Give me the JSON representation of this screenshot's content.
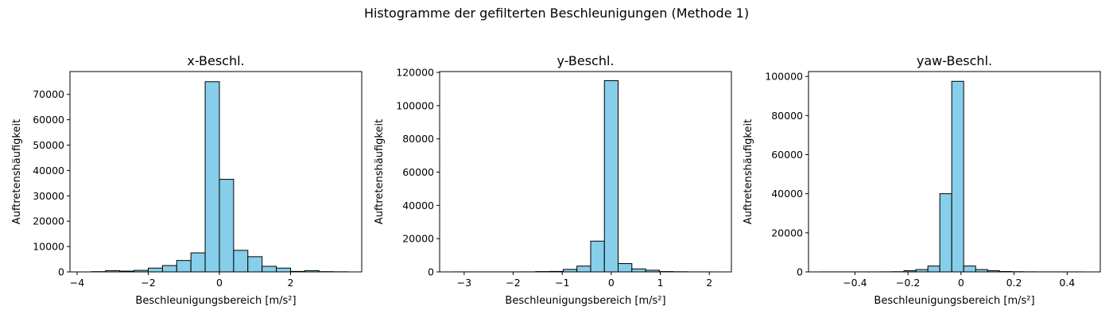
{
  "figure_title": "Histogramme der gefilterten Beschleunigungen (Methode 1)",
  "colors": {
    "bar_fill": "#87CEEB",
    "bar_edge": "#000000"
  },
  "chart_data": [
    {
      "type": "bar",
      "title": "x-Beschl.",
      "xlabel": "Beschleunigungsbereich [m/s²]",
      "ylabel": "Auftretenshäufigkeit",
      "xlim": [
        -4.2,
        4.0
      ],
      "ylim": [
        0,
        79000
      ],
      "xticks": [
        -4,
        -2,
        0,
        2
      ],
      "yticks": [
        0,
        10000,
        20000,
        30000,
        40000,
        50000,
        60000,
        70000
      ],
      "grid": false,
      "bin_edges": [
        -3.6,
        -3.2,
        -2.8,
        -2.4,
        -2.0,
        -1.6,
        -1.2,
        -0.8,
        -0.4,
        0.0,
        0.4,
        0.8,
        1.2,
        1.6,
        2.0,
        2.4,
        2.8,
        3.2,
        3.6
      ],
      "values": [
        100,
        500,
        300,
        600,
        1500,
        2500,
        4500,
        7500,
        75000,
        36500,
        8500,
        6000,
        2200,
        1500,
        200,
        500,
        100,
        50
      ]
    },
    {
      "type": "bar",
      "title": "y-Beschl.",
      "xlabel": "Beschleunigungsbereich [m/s²]",
      "ylabel": "Auftretenshäufigkeit",
      "xlim": [
        -3.5,
        2.45
      ],
      "ylim": [
        0,
        120500
      ],
      "xticks": [
        -3,
        -2,
        -1,
        0,
        1,
        2
      ],
      "yticks": [
        0,
        20000,
        40000,
        60000,
        80000,
        100000,
        120000
      ],
      "grid": false,
      "bin_edges": [
        -3.22,
        -2.94,
        -2.66,
        -2.38,
        -2.1,
        -1.82,
        -1.54,
        -1.26,
        -0.98,
        -0.7,
        -0.42,
        -0.14,
        0.14,
        0.42,
        0.7,
        0.98,
        1.26,
        1.54,
        1.82,
        2.1
      ],
      "values": [
        30,
        30,
        30,
        30,
        30,
        50,
        200,
        300,
        1500,
        3500,
        18500,
        115000,
        5000,
        1800,
        1000,
        200,
        100,
        30,
        20
      ]
    },
    {
      "type": "bar",
      "title": "yaw-Beschl.",
      "xlabel": "Beschleunigungsbereich [m/s²]",
      "ylabel": "Auftretenshäufigkeit",
      "xlim": [
        -0.575,
        0.525
      ],
      "ylim": [
        0,
        102500
      ],
      "xticks": [
        -0.4,
        -0.2,
        0.0,
        0.2,
        0.4
      ],
      "yticks": [
        0,
        20000,
        40000,
        60000,
        80000,
        100000
      ],
      "grid": false,
      "bin_edges": [
        -0.53,
        -0.485,
        -0.44,
        -0.395,
        -0.35,
        -0.305,
        -0.26,
        -0.215,
        -0.17,
        -0.125,
        -0.08,
        -0.035,
        0.01,
        0.055,
        0.1,
        0.145,
        0.19,
        0.235,
        0.28,
        0.325,
        0.37,
        0.415,
        0.46
      ],
      "values": [
        20,
        20,
        20,
        20,
        20,
        50,
        100,
        600,
        1200,
        3000,
        40000,
        97500,
        3000,
        1200,
        600,
        200,
        100,
        50,
        20,
        20,
        20,
        20
      ]
    }
  ]
}
